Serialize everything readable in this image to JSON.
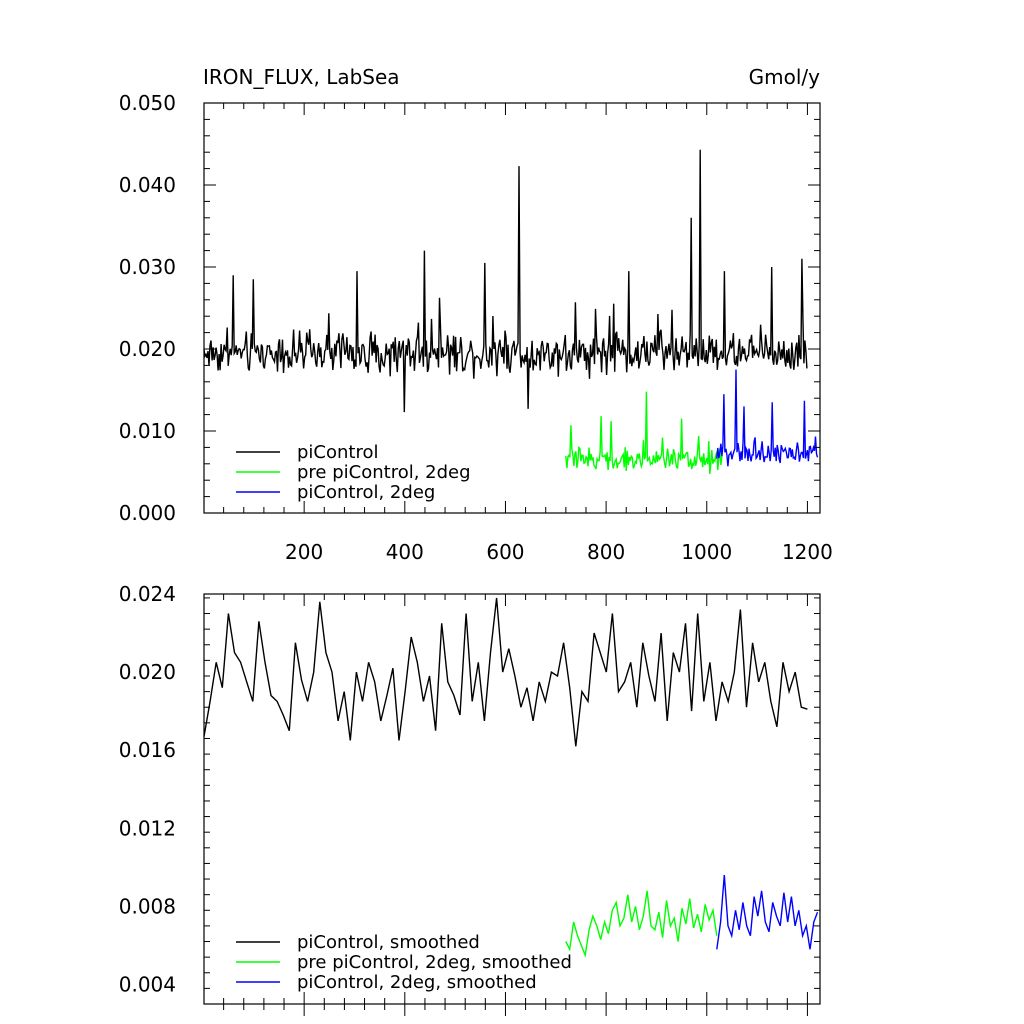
{
  "chart_data": [
    {
      "type": "line",
      "title_left": "IRON_FLUX, LabSea",
      "title_right": "Gmol/y",
      "xlim": [
        1,
        1225
      ],
      "ylim": [
        0.0,
        0.05
      ],
      "xticks": [
        200,
        400,
        600,
        800,
        1000,
        1200
      ],
      "xtick_labels": [
        "200",
        "400",
        "600",
        "800",
        "1000",
        "1200"
      ],
      "yticks": [
        0.0,
        0.01,
        0.02,
        0.03,
        0.04,
        0.05
      ],
      "ytick_labels": [
        "0.000",
        "0.010",
        "0.020",
        "0.030",
        "0.040",
        "0.050"
      ],
      "legend_position": "bottom-left",
      "series": [
        {
          "name": "piControl",
          "color": "#000000",
          "x_range": [
            1,
            1200
          ],
          "baseline": 0.0195,
          "noise": 0.0022,
          "spikes": [
            [
              60,
              0.029
            ],
            [
              100,
              0.0285
            ],
            [
              305,
              0.0295
            ],
            [
              440,
              0.032
            ],
            [
              560,
              0.0305
            ],
            [
              628,
              0.0423
            ],
            [
              845,
              0.0295
            ],
            [
              970,
              0.036
            ],
            [
              987,
              0.0443
            ],
            [
              1035,
              0.0295
            ],
            [
              1130,
              0.03
            ],
            [
              1190,
              0.031
            ],
            [
              645,
              0.0127
            ],
            [
              400,
              0.0123
            ]
          ]
        },
        {
          "name": "pre piControl, 2deg",
          "color": "#00ff00",
          "x_range": [
            720,
            1030
          ],
          "baseline": 0.0065,
          "noise": 0.0012,
          "spikes": [
            [
              730,
              0.0107
            ],
            [
              790,
              0.0118
            ],
            [
              880,
              0.0148
            ],
            [
              810,
              0.0112
            ],
            [
              950,
              0.0115
            ]
          ]
        },
        {
          "name": "piControl, 2deg",
          "color": "#0000ff",
          "x_range": [
            1020,
            1220
          ],
          "baseline": 0.0072,
          "noise": 0.0012,
          "spikes": [
            [
              1035,
              0.0145
            ],
            [
              1058,
              0.0175
            ],
            [
              1075,
              0.013
            ],
            [
              1130,
              0.0135
            ],
            [
              1195,
              0.0137
            ]
          ]
        }
      ]
    },
    {
      "type": "line",
      "xlim": [
        1,
        1225
      ],
      "ylim": [
        0.003,
        0.024
      ],
      "xticks": [
        200,
        400,
        600,
        800,
        1000,
        1200
      ],
      "yticks": [
        0.004,
        0.008,
        0.012,
        0.016,
        0.02,
        0.024
      ],
      "ytick_labels": [
        "0.004",
        "0.008",
        "0.012",
        "0.016",
        "0.020",
        "0.024"
      ],
      "legend_position": "bottom-left",
      "series": [
        {
          "name": "piControl, smoothed",
          "color": "#000000",
          "x_range": [
            1,
            1200
          ],
          "values": [
            0.0167,
            0.0185,
            0.0205,
            0.0192,
            0.023,
            0.021,
            0.0205,
            0.0195,
            0.0185,
            0.0226,
            0.0205,
            0.0188,
            0.0185,
            0.0178,
            0.017,
            0.0215,
            0.0196,
            0.0185,
            0.02,
            0.0236,
            0.021,
            0.02,
            0.0175,
            0.019,
            0.0165,
            0.02,
            0.0185,
            0.0205,
            0.0195,
            0.0175,
            0.0188,
            0.0202,
            0.0165,
            0.019,
            0.0218,
            0.0205,
            0.0185,
            0.0198,
            0.017,
            0.0225,
            0.0195,
            0.0188,
            0.0178,
            0.023,
            0.0185,
            0.0205,
            0.0175,
            0.021,
            0.0238,
            0.02,
            0.0212,
            0.0198,
            0.0182,
            0.0192,
            0.0175,
            0.0195,
            0.0185,
            0.02,
            0.0198,
            0.0215,
            0.0192,
            0.0162,
            0.019,
            0.0185,
            0.022,
            0.021,
            0.02,
            0.023,
            0.019,
            0.0195,
            0.0205,
            0.0182,
            0.0215,
            0.0198,
            0.0185,
            0.022,
            0.0175,
            0.021,
            0.02,
            0.0225,
            0.018,
            0.023,
            0.0185,
            0.0205,
            0.0175,
            0.0195,
            0.0185,
            0.02,
            0.0232,
            0.0182,
            0.0215,
            0.0195,
            0.0205,
            0.0185,
            0.0172,
            0.0205,
            0.019,
            0.02,
            0.0182,
            0.0181
          ]
        },
        {
          "name": "pre piControl, 2deg, smoothed",
          "color": "#00ff00",
          "x_range": [
            720,
            1020
          ],
          "values": [
            0.0062,
            0.0058,
            0.0072,
            0.0065,
            0.006,
            0.0055,
            0.0068,
            0.0075,
            0.007,
            0.0063,
            0.0072,
            0.0066,
            0.0078,
            0.0082,
            0.007,
            0.0074,
            0.0086,
            0.0072,
            0.008,
            0.0068,
            0.0075,
            0.0088,
            0.007,
            0.0068,
            0.0077,
            0.0064,
            0.0083,
            0.007,
            0.0074,
            0.0062,
            0.0079,
            0.0071,
            0.0084,
            0.0069,
            0.0076,
            0.0067,
            0.0081,
            0.0073,
            0.0078,
            0.0065
          ]
        },
        {
          "name": "piControl, 2deg, smoothed",
          "color": "#0000ff",
          "x_range": [
            1020,
            1220
          ],
          "values": [
            0.0058,
            0.0072,
            0.0096,
            0.007,
            0.0065,
            0.0078,
            0.0068,
            0.0082,
            0.007,
            0.0065,
            0.0085,
            0.0075,
            0.0088,
            0.0072,
            0.0067,
            0.0082,
            0.0075,
            0.007,
            0.0087,
            0.0072,
            0.0085,
            0.007,
            0.0078,
            0.0065,
            0.007,
            0.0058,
            0.0072,
            0.0077
          ]
        }
      ]
    }
  ]
}
